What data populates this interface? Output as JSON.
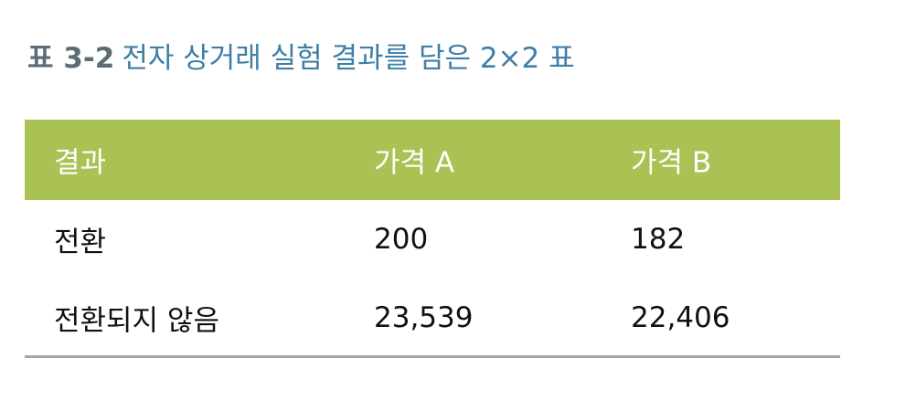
{
  "caption": {
    "number": "표 3-2",
    "title": "전자 상거래 실험 결과를 담은 2×2 표"
  },
  "table": {
    "headers": [
      "결과",
      "가격 A",
      "가격 B"
    ],
    "rows": [
      {
        "label": "전환",
        "a": "200",
        "b": "182"
      },
      {
        "label": "전환되지 않음",
        "a": "23,539",
        "b": "22,406"
      }
    ]
  },
  "colors": {
    "header_bg": "#a9c253",
    "caption_title": "#3d7fa6",
    "caption_number": "#5d6b74",
    "rule": "#a7a7a7"
  }
}
